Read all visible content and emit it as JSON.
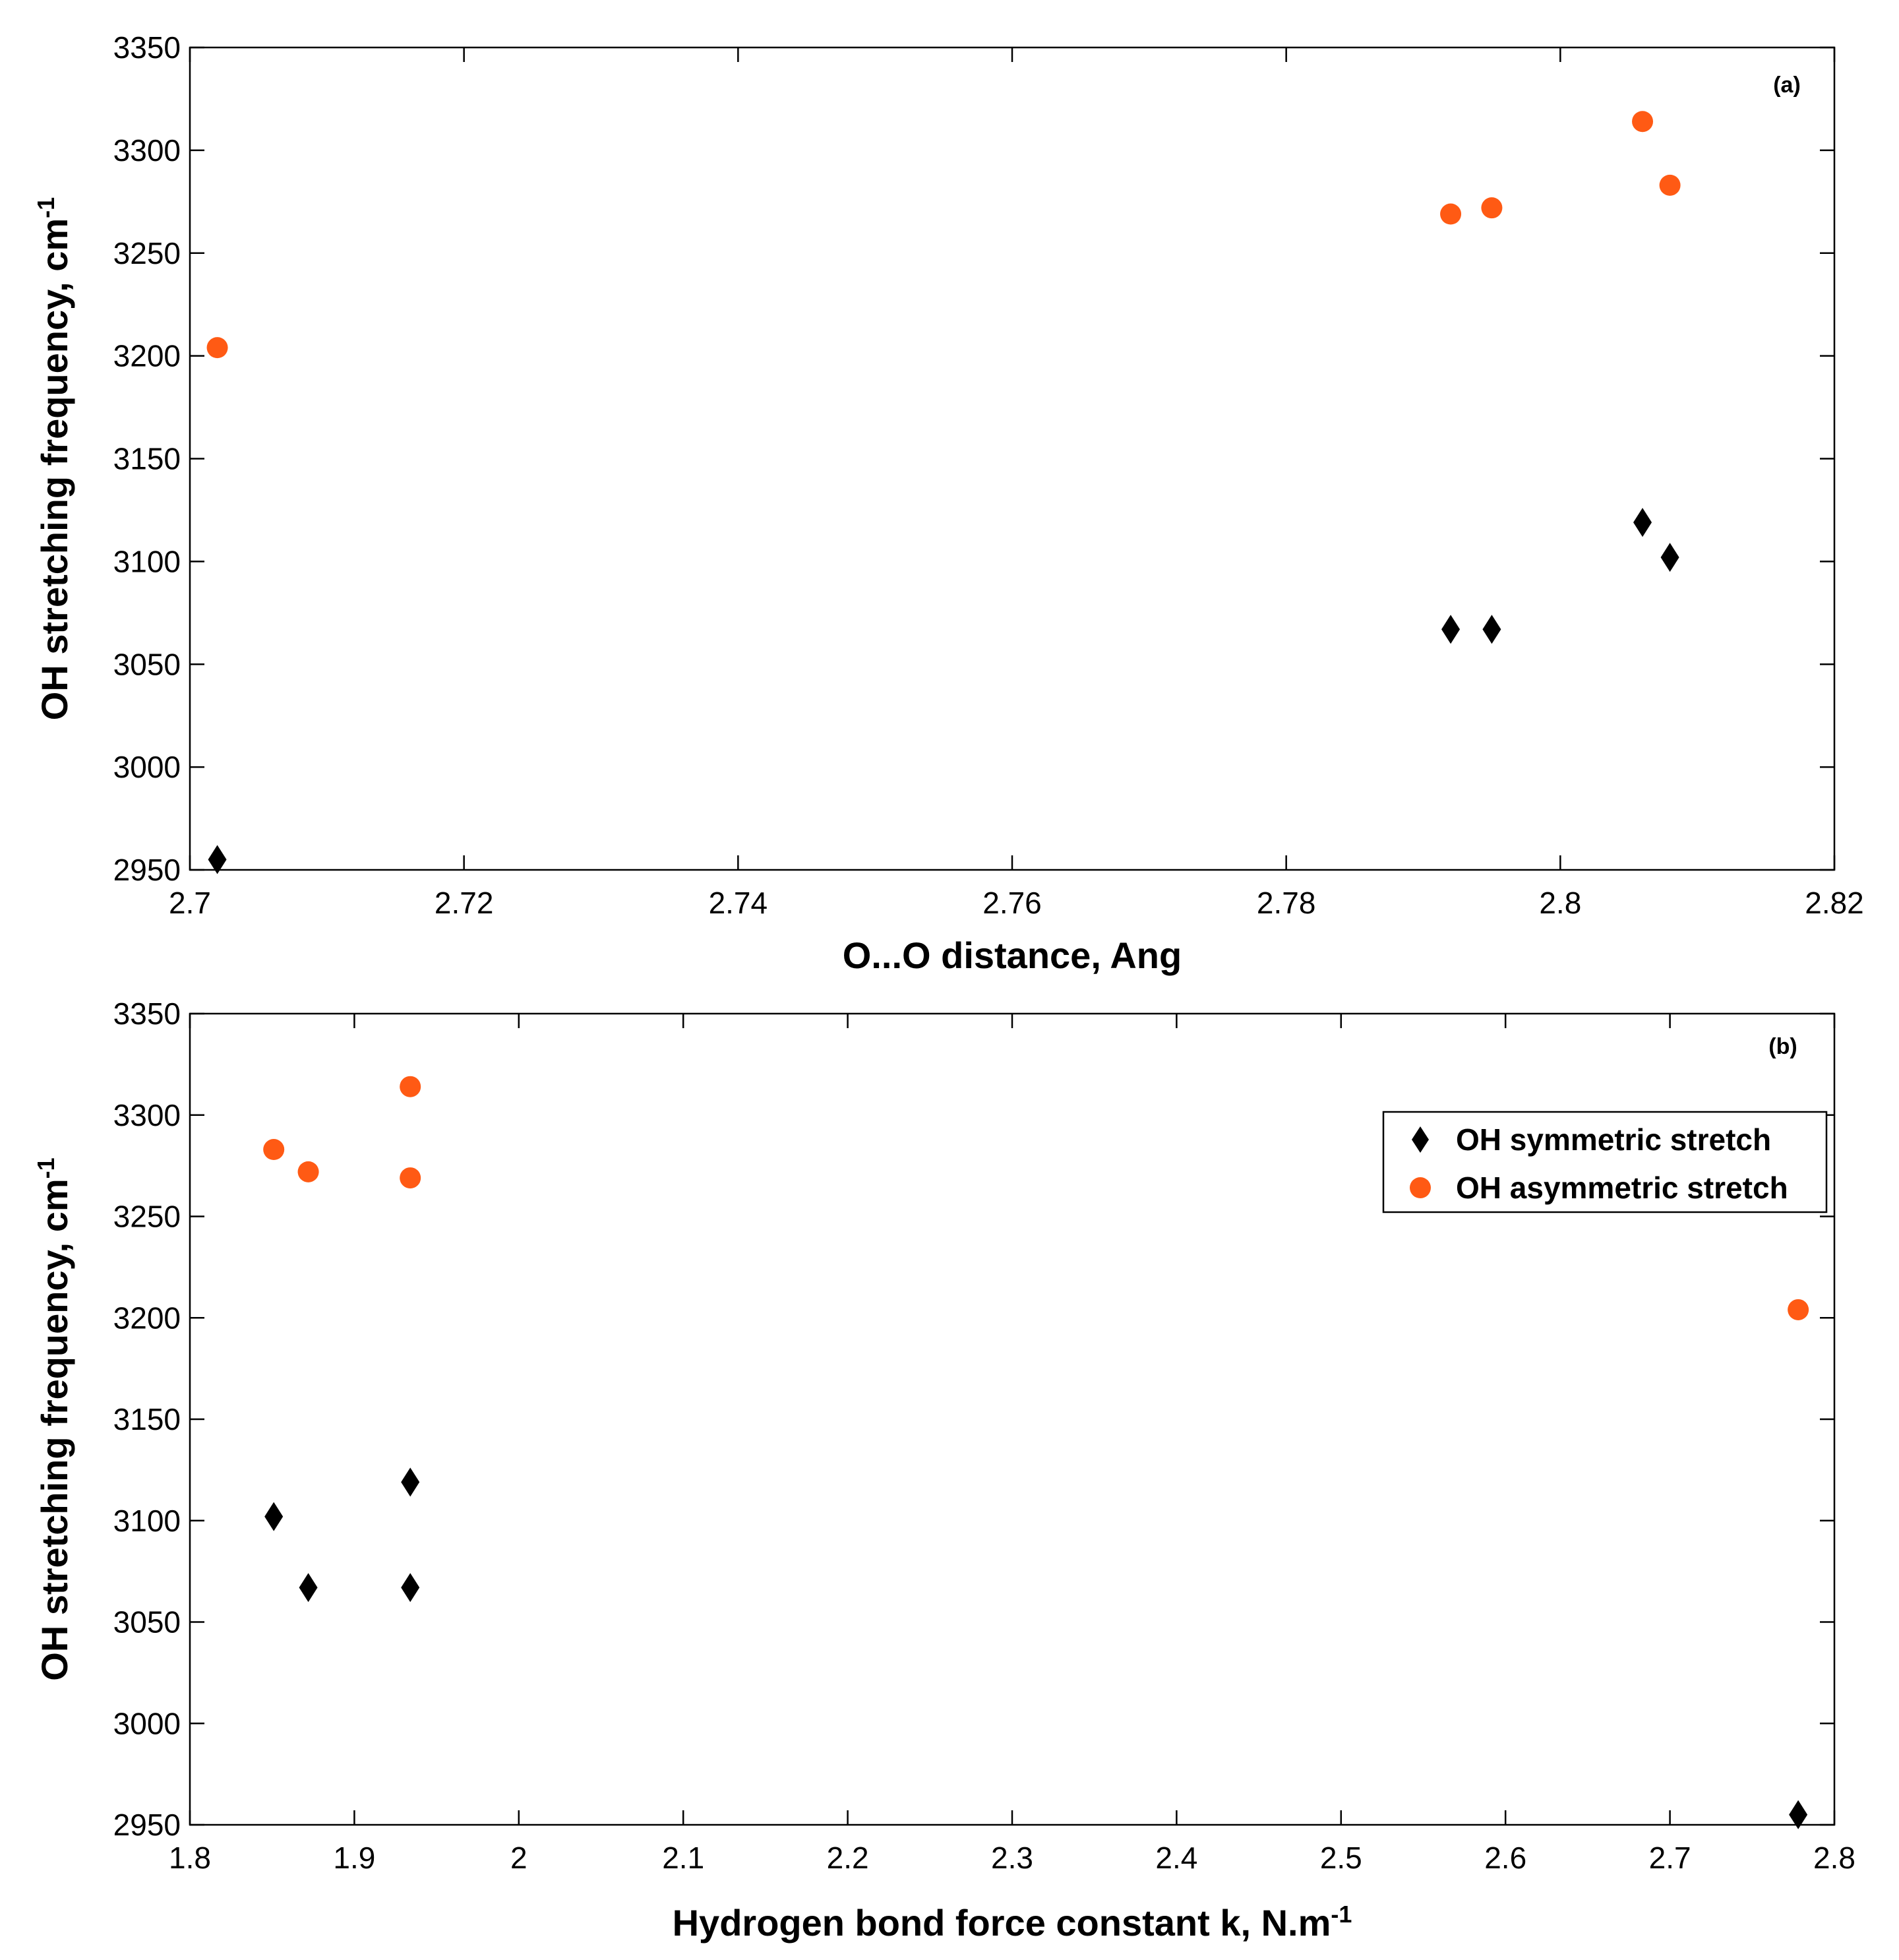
{
  "chart_data": [
    {
      "type": "scatter",
      "panel_label": "(a)",
      "xlabel": "O...O distance, Ang",
      "ylabel": "OH stretching frequency, cm",
      "ylabel_sup": "-1",
      "xlim": [
        2.7,
        2.82
      ],
      "ylim": [
        2950,
        3350
      ],
      "xticks": [
        2.7,
        2.72,
        2.74,
        2.76,
        2.78,
        2.8,
        2.82
      ],
      "xtick_labels": [
        "2.7",
        "2.72",
        "2.74",
        "2.76",
        "2.78",
        "2.8",
        "2.82"
      ],
      "yticks": [
        2950,
        3000,
        3050,
        3100,
        3150,
        3200,
        3250,
        3300,
        3350
      ],
      "ytick_labels": [
        "2950",
        "3000",
        "3050",
        "3100",
        "3150",
        "3200",
        "3250",
        "3300",
        "3350"
      ],
      "series": [
        {
          "name": "OH symmetric stretch",
          "marker": "diamond",
          "color": "#000000",
          "x": [
            2.702,
            2.792,
            2.795,
            2.806,
            2.808
          ],
          "y": [
            2955,
            3067,
            3067,
            3119,
            3102
          ]
        },
        {
          "name": "OH asymmetric stretch",
          "marker": "circle",
          "color": "#ff5a14",
          "x": [
            2.702,
            2.792,
            2.795,
            2.806,
            2.808
          ],
          "y": [
            3204,
            3269,
            3272,
            3314,
            3283
          ]
        }
      ]
    },
    {
      "type": "scatter",
      "panel_label": "(b)",
      "xlabel": "Hydrogen bond force constant k, N.m",
      "xlabel_sup": "-1",
      "ylabel": "OH stretching frequency, cm",
      "ylabel_sup": "-1",
      "xlim": [
        1.8,
        2.8
      ],
      "ylim": [
        2950,
        3350
      ],
      "xticks": [
        1.8,
        1.9,
        2.0,
        2.1,
        2.2,
        2.3,
        2.4,
        2.5,
        2.6,
        2.7,
        2.8
      ],
      "xtick_labels": [
        "1.8",
        "1.9",
        "2",
        "2.1",
        "2.2",
        "2.3",
        "2.4",
        "2.5",
        "2.6",
        "2.7",
        "2.8"
      ],
      "yticks": [
        2950,
        3000,
        3050,
        3100,
        3150,
        3200,
        3250,
        3300,
        3350
      ],
      "ytick_labels": [
        "2950",
        "3000",
        "3050",
        "3100",
        "3150",
        "3200",
        "3250",
        "3300",
        "3350"
      ],
      "legend_position": "upper-right",
      "series": [
        {
          "name": "OH symmetric stretch",
          "marker": "diamond",
          "color": "#000000",
          "x": [
            1.851,
            1.872,
            1.934,
            1.934,
            2.778
          ],
          "y": [
            3102,
            3067,
            3119,
            3067,
            2955
          ]
        },
        {
          "name": "OH asymmetric stretch",
          "marker": "circle",
          "color": "#ff5a14",
          "x": [
            1.851,
            1.872,
            1.934,
            1.934,
            2.778
          ],
          "y": [
            3283,
            3272,
            3314,
            3269,
            3204
          ]
        }
      ]
    }
  ]
}
